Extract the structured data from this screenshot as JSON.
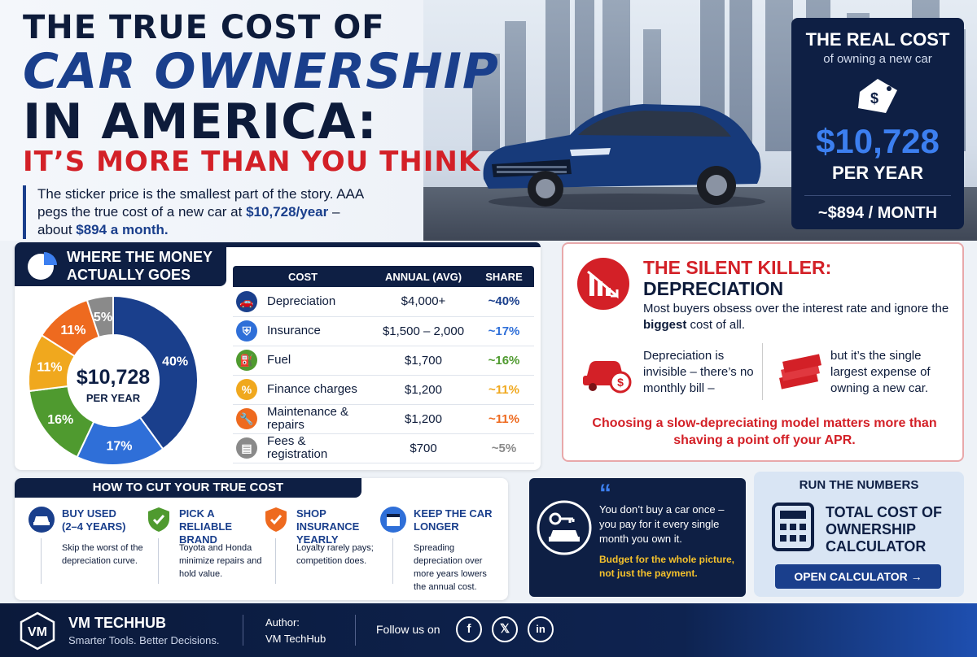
{
  "header": {
    "title_line1": "THE TRUE COST OF",
    "title_line2": "CAR OWNERSHIP",
    "title_line3": "IN AMERICA:",
    "title_line4": "IT’S MORE THAN YOU THINK",
    "intro_a": "The sticker price is the smallest part of the story. AAA pegs the true cost of a new car at ",
    "intro_b": "$10,728/year",
    "intro_c": " – about ",
    "intro_d": "$894 a month."
  },
  "real_cost": {
    "title": "THE REAL COST",
    "subtitle": "of owning a new car",
    "tag_symbol": "$",
    "amount": "$10,728",
    "per_year": "PER YEAR",
    "per_month": "~$894 / MONTH"
  },
  "money": {
    "heading_line1": "WHERE THE MONEY",
    "heading_line2": "ACTUALLY GOES",
    "donut_center_amount": "$10,728",
    "donut_center_label": "PER YEAR",
    "table_headers": [
      "COST",
      "ANNUAL (AVG)",
      "SHARE"
    ],
    "rows": [
      {
        "icon": "car-icon",
        "name": "Depreciation",
        "annual": "$4,000+",
        "share": "~40%",
        "color": "#1a3f8c"
      },
      {
        "icon": "shield-icon",
        "name": "Insurance",
        "annual": "$1,500 – 2,000",
        "share": "~17%",
        "color": "#2f6fd8"
      },
      {
        "icon": "fuel-icon",
        "name": "Fuel",
        "annual": "$1,700",
        "share": "~16%",
        "color": "#4f9a2f"
      },
      {
        "icon": "percent-icon",
        "name": "Finance charges",
        "annual": "$1,200",
        "share": "~11%",
        "color": "#f0a81e"
      },
      {
        "icon": "wrench-icon",
        "name": "Maintenance & repairs",
        "annual": "$1,200",
        "share": "~11%",
        "color": "#ee6a1f"
      },
      {
        "icon": "document-icon",
        "name": "Fees & registration",
        "annual": "$700",
        "share": "~5%",
        "color": "#8a8a8a"
      }
    ]
  },
  "chart_data": {
    "type": "pie",
    "categories": [
      "Depreciation",
      "Insurance",
      "Fuel",
      "Finance charges",
      "Maintenance & repairs",
      "Fees & registration"
    ],
    "values": [
      40,
      17,
      16,
      11,
      11,
      5
    ],
    "labels": [
      "40%",
      "17%",
      "16%",
      "11%",
      "11%",
      "5%"
    ],
    "colors": [
      "#1a3f8c",
      "#2f6fd8",
      "#4f9a2f",
      "#f0a81e",
      "#ee6a1f",
      "#8a8a8a"
    ]
  },
  "killer": {
    "title_red": "THE SILENT KILLER:",
    "title_dark": "DEPRECIATION",
    "desc_a": "Most buyers obsess over the interest rate and ignore the ",
    "desc_b": "biggest",
    "desc_c": " cost of all.",
    "col1": "Depreciation is invisible – there’s no monthly bill –",
    "col2": "but it’s the single largest expense of owning a new car.",
    "quote": "Choosing a slow-depreciating model matters more than shaving a point off your APR."
  },
  "tips": {
    "title": "HOW TO CUT YOUR TRUE COST",
    "items": [
      {
        "heading": "BUY USED\n(2–4 YEARS)",
        "text": "Skip the worst of the depreciation curve."
      },
      {
        "heading": "PICK A RELIABLE\nBRAND",
        "text": "Toyota and Honda minimize repairs and hold value."
      },
      {
        "heading": "SHOP INSURANCE\nYEARLY",
        "text": "Loyalty rarely pays; competition does."
      },
      {
        "heading": "KEEP THE CAR\nLONGER",
        "text": "Spreading depreciation over more years lowers the annual cost."
      }
    ]
  },
  "quote": {
    "mark": "“",
    "text": "You don’t buy a car once – you pay for it every single month you own it.",
    "highlight": "Budget for the whole picture, not just the payment."
  },
  "calculator": {
    "title": "RUN THE NUMBERS",
    "name": "TOTAL COST OF OWNERSHIP CALCULATOR",
    "button": "OPEN CALCULATOR →"
  },
  "footer": {
    "logo": "VM",
    "brand": "VM TECHHUB",
    "tagline": "Smarter Tools. Better Decisions.",
    "author_label": "Author:",
    "author_name": "VM TechHub",
    "follow": "Follow us on",
    "social": [
      "f",
      "𝕏",
      "in"
    ]
  }
}
